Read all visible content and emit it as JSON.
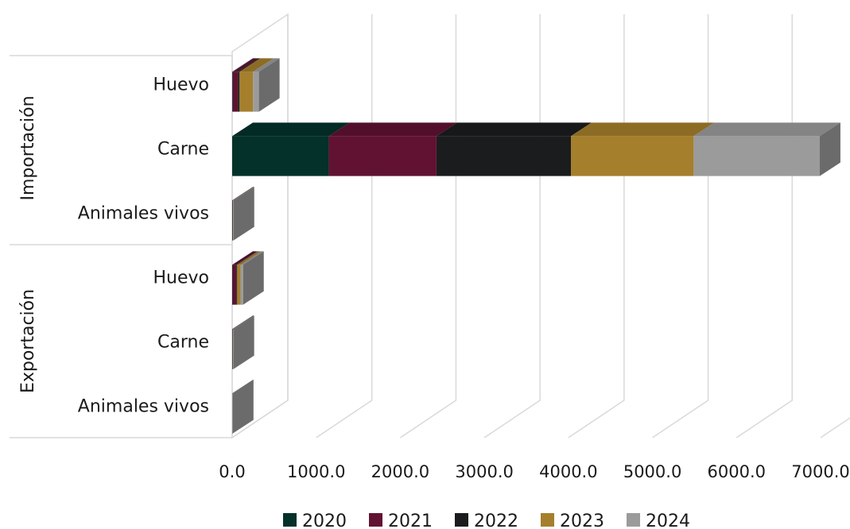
{
  "chart_data": {
    "type": "bar",
    "orientation": "horizontal",
    "stacked": true,
    "three_d": true,
    "groups": [
      {
        "label": "Importación",
        "categories": [
          "Huevo",
          "Carne",
          "Animales vivos"
        ]
      },
      {
        "label": "Exportación",
        "categories": [
          "Huevo",
          "Carne",
          "Animales vivos"
        ]
      }
    ],
    "series": [
      {
        "name": "2020",
        "color": "#04312a",
        "values": [
          8,
          1150,
          3,
          5,
          2,
          0
        ]
      },
      {
        "name": "2021",
        "color": "#611232",
        "values": [
          60,
          1280,
          2,
          45,
          2,
          0
        ]
      },
      {
        "name": "2022",
        "color": "#1b1c1d",
        "values": [
          20,
          1600,
          2,
          10,
          2,
          0
        ]
      },
      {
        "name": "2023",
        "color": "#a57f2c",
        "values": [
          160,
          1460,
          2,
          40,
          2,
          0
        ]
      },
      {
        "name": "2024",
        "color": "#9b9b9b",
        "values": [
          70,
          1500,
          2,
          30,
          2,
          0
        ]
      }
    ],
    "xlim": [
      0,
      7000
    ],
    "ticks": [
      "0.0",
      "1000.0",
      "2000.0",
      "3000.0",
      "4000.0",
      "5000.0",
      "6000.0",
      "7000.0"
    ],
    "tick_values": [
      0,
      1000,
      2000,
      3000,
      4000,
      5000,
      6000,
      7000
    ],
    "grid": true,
    "legend_position": "bottom"
  }
}
